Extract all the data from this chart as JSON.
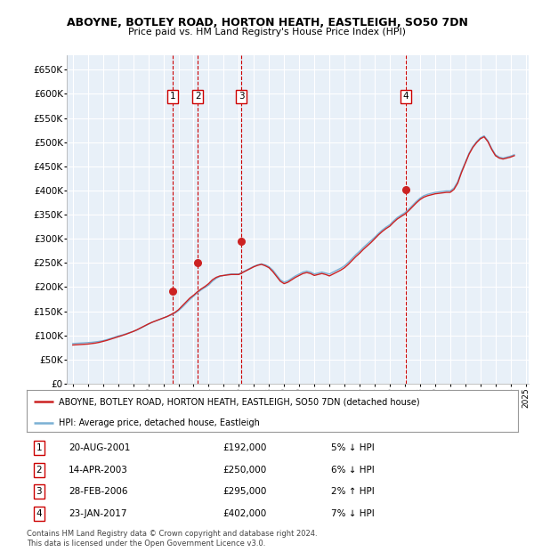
{
  "title_line1": "ABOYNE, BOTLEY ROAD, HORTON HEATH, EASTLEIGH, SO50 7DN",
  "title_line2": "Price paid vs. HM Land Registry's House Price Index (HPI)",
  "ylim": [
    0,
    680000
  ],
  "yticks": [
    0,
    50000,
    100000,
    150000,
    200000,
    250000,
    300000,
    350000,
    400000,
    450000,
    500000,
    550000,
    600000,
    650000
  ],
  "ytick_labels": [
    "£0",
    "£50K",
    "£100K",
    "£150K",
    "£200K",
    "£250K",
    "£300K",
    "£350K",
    "£400K",
    "£450K",
    "£500K",
    "£550K",
    "£600K",
    "£650K"
  ],
  "hpi_color": "#7ab0d4",
  "price_color": "#cc2222",
  "plot_bg": "#e8f0f8",
  "grid_color": "#ffffff",
  "legend_line1": "ABOYNE, BOTLEY ROAD, HORTON HEATH, EASTLEIGH, SO50 7DN (detached house)",
  "legend_line2": "HPI: Average price, detached house, Eastleigh",
  "transactions": [
    {
      "num": 1,
      "date": "20-AUG-2001",
      "price": "£192,000",
      "hpi": "5% ↓ HPI",
      "year": 2001.64
    },
    {
      "num": 2,
      "date": "14-APR-2003",
      "price": "£250,000",
      "hpi": "6% ↓ HPI",
      "year": 2003.29
    },
    {
      "num": 3,
      "date": "28-FEB-2006",
      "price": "£295,000",
      "hpi": "2% ↑ HPI",
      "year": 2006.17
    },
    {
      "num": 4,
      "date": "23-JAN-2017",
      "price": "£402,000",
      "hpi": "7% ↓ HPI",
      "year": 2017.07
    }
  ],
  "transaction_prices": [
    192000,
    250000,
    295000,
    402000
  ],
  "footnote_line1": "Contains HM Land Registry data © Crown copyright and database right 2024.",
  "footnote_line2": "This data is licensed under the Open Government Licence v3.0.",
  "hpi_years": [
    1995.0,
    1995.25,
    1995.5,
    1995.75,
    1996.0,
    1996.25,
    1996.5,
    1996.75,
    1997.0,
    1997.25,
    1997.5,
    1997.75,
    1998.0,
    1998.25,
    1998.5,
    1998.75,
    1999.0,
    1999.25,
    1999.5,
    1999.75,
    2000.0,
    2000.25,
    2000.5,
    2000.75,
    2001.0,
    2001.25,
    2001.5,
    2001.75,
    2002.0,
    2002.25,
    2002.5,
    2002.75,
    2003.0,
    2003.25,
    2003.5,
    2003.75,
    2004.0,
    2004.25,
    2004.5,
    2004.75,
    2005.0,
    2005.25,
    2005.5,
    2005.75,
    2006.0,
    2006.25,
    2006.5,
    2006.75,
    2007.0,
    2007.25,
    2007.5,
    2007.75,
    2008.0,
    2008.25,
    2008.5,
    2008.75,
    2009.0,
    2009.25,
    2009.5,
    2009.75,
    2010.0,
    2010.25,
    2010.5,
    2010.75,
    2011.0,
    2011.25,
    2011.5,
    2011.75,
    2012.0,
    2012.25,
    2012.5,
    2012.75,
    2013.0,
    2013.25,
    2013.5,
    2013.75,
    2014.0,
    2014.25,
    2014.5,
    2014.75,
    2015.0,
    2015.25,
    2015.5,
    2015.75,
    2016.0,
    2016.25,
    2016.5,
    2016.75,
    2017.0,
    2017.25,
    2017.5,
    2017.75,
    2018.0,
    2018.25,
    2018.5,
    2018.75,
    2019.0,
    2019.25,
    2019.5,
    2019.75,
    2020.0,
    2020.25,
    2020.5,
    2020.75,
    2021.0,
    2021.25,
    2021.5,
    2021.75,
    2022.0,
    2022.25,
    2022.5,
    2022.75,
    2023.0,
    2023.25,
    2023.5,
    2023.75,
    2024.0,
    2024.25
  ],
  "hpi_vals": [
    83000,
    83500,
    84000,
    84500,
    85000,
    85500,
    86500,
    87500,
    89000,
    91000,
    93500,
    96000,
    98500,
    100500,
    103000,
    105500,
    108000,
    111000,
    115000,
    119000,
    123000,
    127000,
    130000,
    133000,
    136000,
    139000,
    142000,
    146000,
    151000,
    158000,
    166000,
    174000,
    181000,
    188000,
    194000,
    199000,
    204000,
    212000,
    218000,
    222000,
    224000,
    226000,
    227000,
    227000,
    227000,
    231000,
    235000,
    239000,
    243000,
    246000,
    248000,
    246000,
    242000,
    235000,
    225000,
    215000,
    210000,
    213000,
    218000,
    223000,
    227000,
    231000,
    233000,
    231000,
    227000,
    229000,
    231000,
    229000,
    227000,
    231000,
    235000,
    239000,
    244000,
    251000,
    259000,
    267000,
    274000,
    282000,
    289000,
    296000,
    303000,
    311000,
    318000,
    324000,
    329000,
    337000,
    344000,
    349000,
    354000,
    361000,
    369000,
    377000,
    384000,
    389000,
    392000,
    394000,
    396000,
    397000,
    398000,
    399000,
    399000,
    405000,
    418000,
    440000,
    458000,
    477000,
    491000,
    501000,
    509000,
    513000,
    503000,
    487000,
    474000,
    469000,
    467000,
    469000,
    471000,
    474000
  ],
  "price_years": [
    1995.0,
    1995.25,
    1995.5,
    1995.75,
    1996.0,
    1996.25,
    1996.5,
    1996.75,
    1997.0,
    1997.25,
    1997.5,
    1997.75,
    1998.0,
    1998.25,
    1998.5,
    1998.75,
    1999.0,
    1999.25,
    1999.5,
    1999.75,
    2000.0,
    2000.25,
    2000.5,
    2000.75,
    2001.0,
    2001.25,
    2001.5,
    2001.75,
    2002.0,
    2002.25,
    2002.5,
    2002.75,
    2003.0,
    2003.25,
    2003.5,
    2003.75,
    2004.0,
    2004.25,
    2004.5,
    2004.75,
    2005.0,
    2005.25,
    2005.5,
    2005.75,
    2006.0,
    2006.25,
    2006.5,
    2006.75,
    2007.0,
    2007.25,
    2007.5,
    2007.75,
    2008.0,
    2008.25,
    2008.5,
    2008.75,
    2009.0,
    2009.25,
    2009.5,
    2009.75,
    2010.0,
    2010.25,
    2010.5,
    2010.75,
    2011.0,
    2011.25,
    2011.5,
    2011.75,
    2012.0,
    2012.25,
    2012.5,
    2012.75,
    2013.0,
    2013.25,
    2013.5,
    2013.75,
    2014.0,
    2014.25,
    2014.5,
    2014.75,
    2015.0,
    2015.25,
    2015.5,
    2015.75,
    2016.0,
    2016.25,
    2016.5,
    2016.75,
    2017.0,
    2017.25,
    2017.5,
    2017.75,
    2018.0,
    2018.25,
    2018.5,
    2018.75,
    2019.0,
    2019.25,
    2019.5,
    2019.75,
    2020.0,
    2020.25,
    2020.5,
    2020.75,
    2021.0,
    2021.25,
    2021.5,
    2021.75,
    2022.0,
    2022.25,
    2022.5,
    2022.75,
    2023.0,
    2023.25,
    2023.5,
    2023.75,
    2024.0,
    2024.25
  ],
  "price_vals": [
    80000,
    80500,
    81000,
    81500,
    82000,
    83000,
    84000,
    85500,
    87500,
    89500,
    92000,
    94500,
    97000,
    99500,
    102000,
    105000,
    108000,
    111500,
    115500,
    119500,
    123500,
    127000,
    130000,
    133000,
    136000,
    139000,
    143000,
    147000,
    153000,
    161000,
    169000,
    177000,
    183000,
    190000,
    196000,
    201000,
    207000,
    215000,
    220000,
    223000,
    224000,
    225000,
    226000,
    226000,
    226000,
    230000,
    234000,
    238000,
    242000,
    245000,
    247000,
    244000,
    240000,
    232000,
    222000,
    212000,
    207000,
    210000,
    215000,
    220000,
    224000,
    228000,
    230000,
    228000,
    224000,
    226000,
    228000,
    226000,
    223000,
    227000,
    231000,
    235000,
    240000,
    247000,
    255000,
    263000,
    270000,
    278000,
    285000,
    292000,
    300000,
    308000,
    315000,
    321000,
    326000,
    334000,
    341000,
    346000,
    351000,
    358000,
    366000,
    374000,
    381000,
    386000,
    389000,
    391000,
    393000,
    394000,
    395000,
    396000,
    396000,
    402000,
    415000,
    437000,
    456000,
    475000,
    489000,
    499000,
    507000,
    511000,
    501000,
    485000,
    472000,
    467000,
    465000,
    467000,
    469000,
    472000
  ],
  "xlim_left": 1994.6,
  "xlim_right": 2025.2
}
